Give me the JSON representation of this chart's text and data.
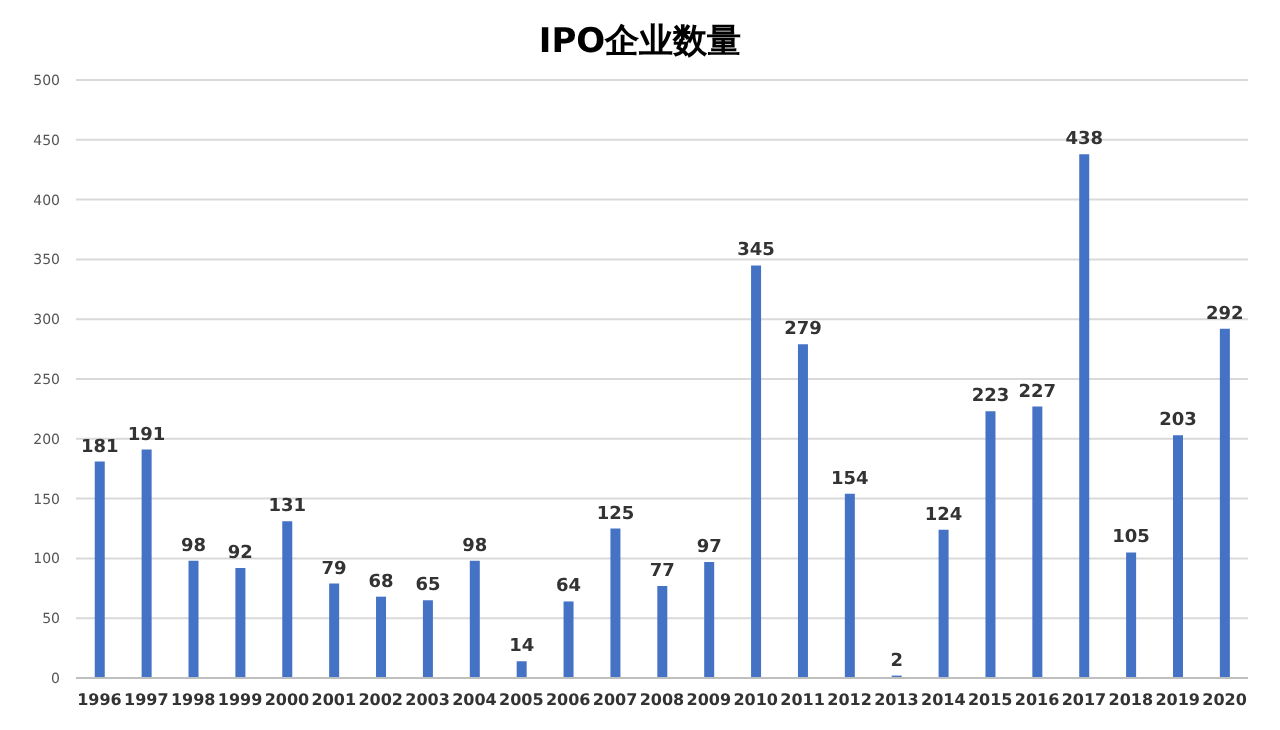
{
  "chart_data": {
    "type": "bar",
    "title": "IPO企业数量",
    "categories": [
      "1996",
      "1997",
      "1998",
      "1999",
      "2000",
      "2001",
      "2002",
      "2003",
      "2004",
      "2005",
      "2006",
      "2007",
      "2008",
      "2009",
      "2010",
      "2011",
      "2012",
      "2013",
      "2014",
      "2015",
      "2016",
      "2017",
      "2018",
      "2019",
      "2020"
    ],
    "values": [
      181,
      191,
      98,
      92,
      131,
      79,
      68,
      65,
      98,
      14,
      64,
      125,
      77,
      97,
      345,
      279,
      154,
      2,
      124,
      223,
      227,
      438,
      105,
      203,
      292
    ],
    "color": "#4472c4",
    "ylim": [
      0,
      500
    ],
    "yticks": [
      0,
      50,
      100,
      150,
      200,
      250,
      300,
      350,
      400,
      450,
      500
    ],
    "grid": "y",
    "data_labels": true
  }
}
